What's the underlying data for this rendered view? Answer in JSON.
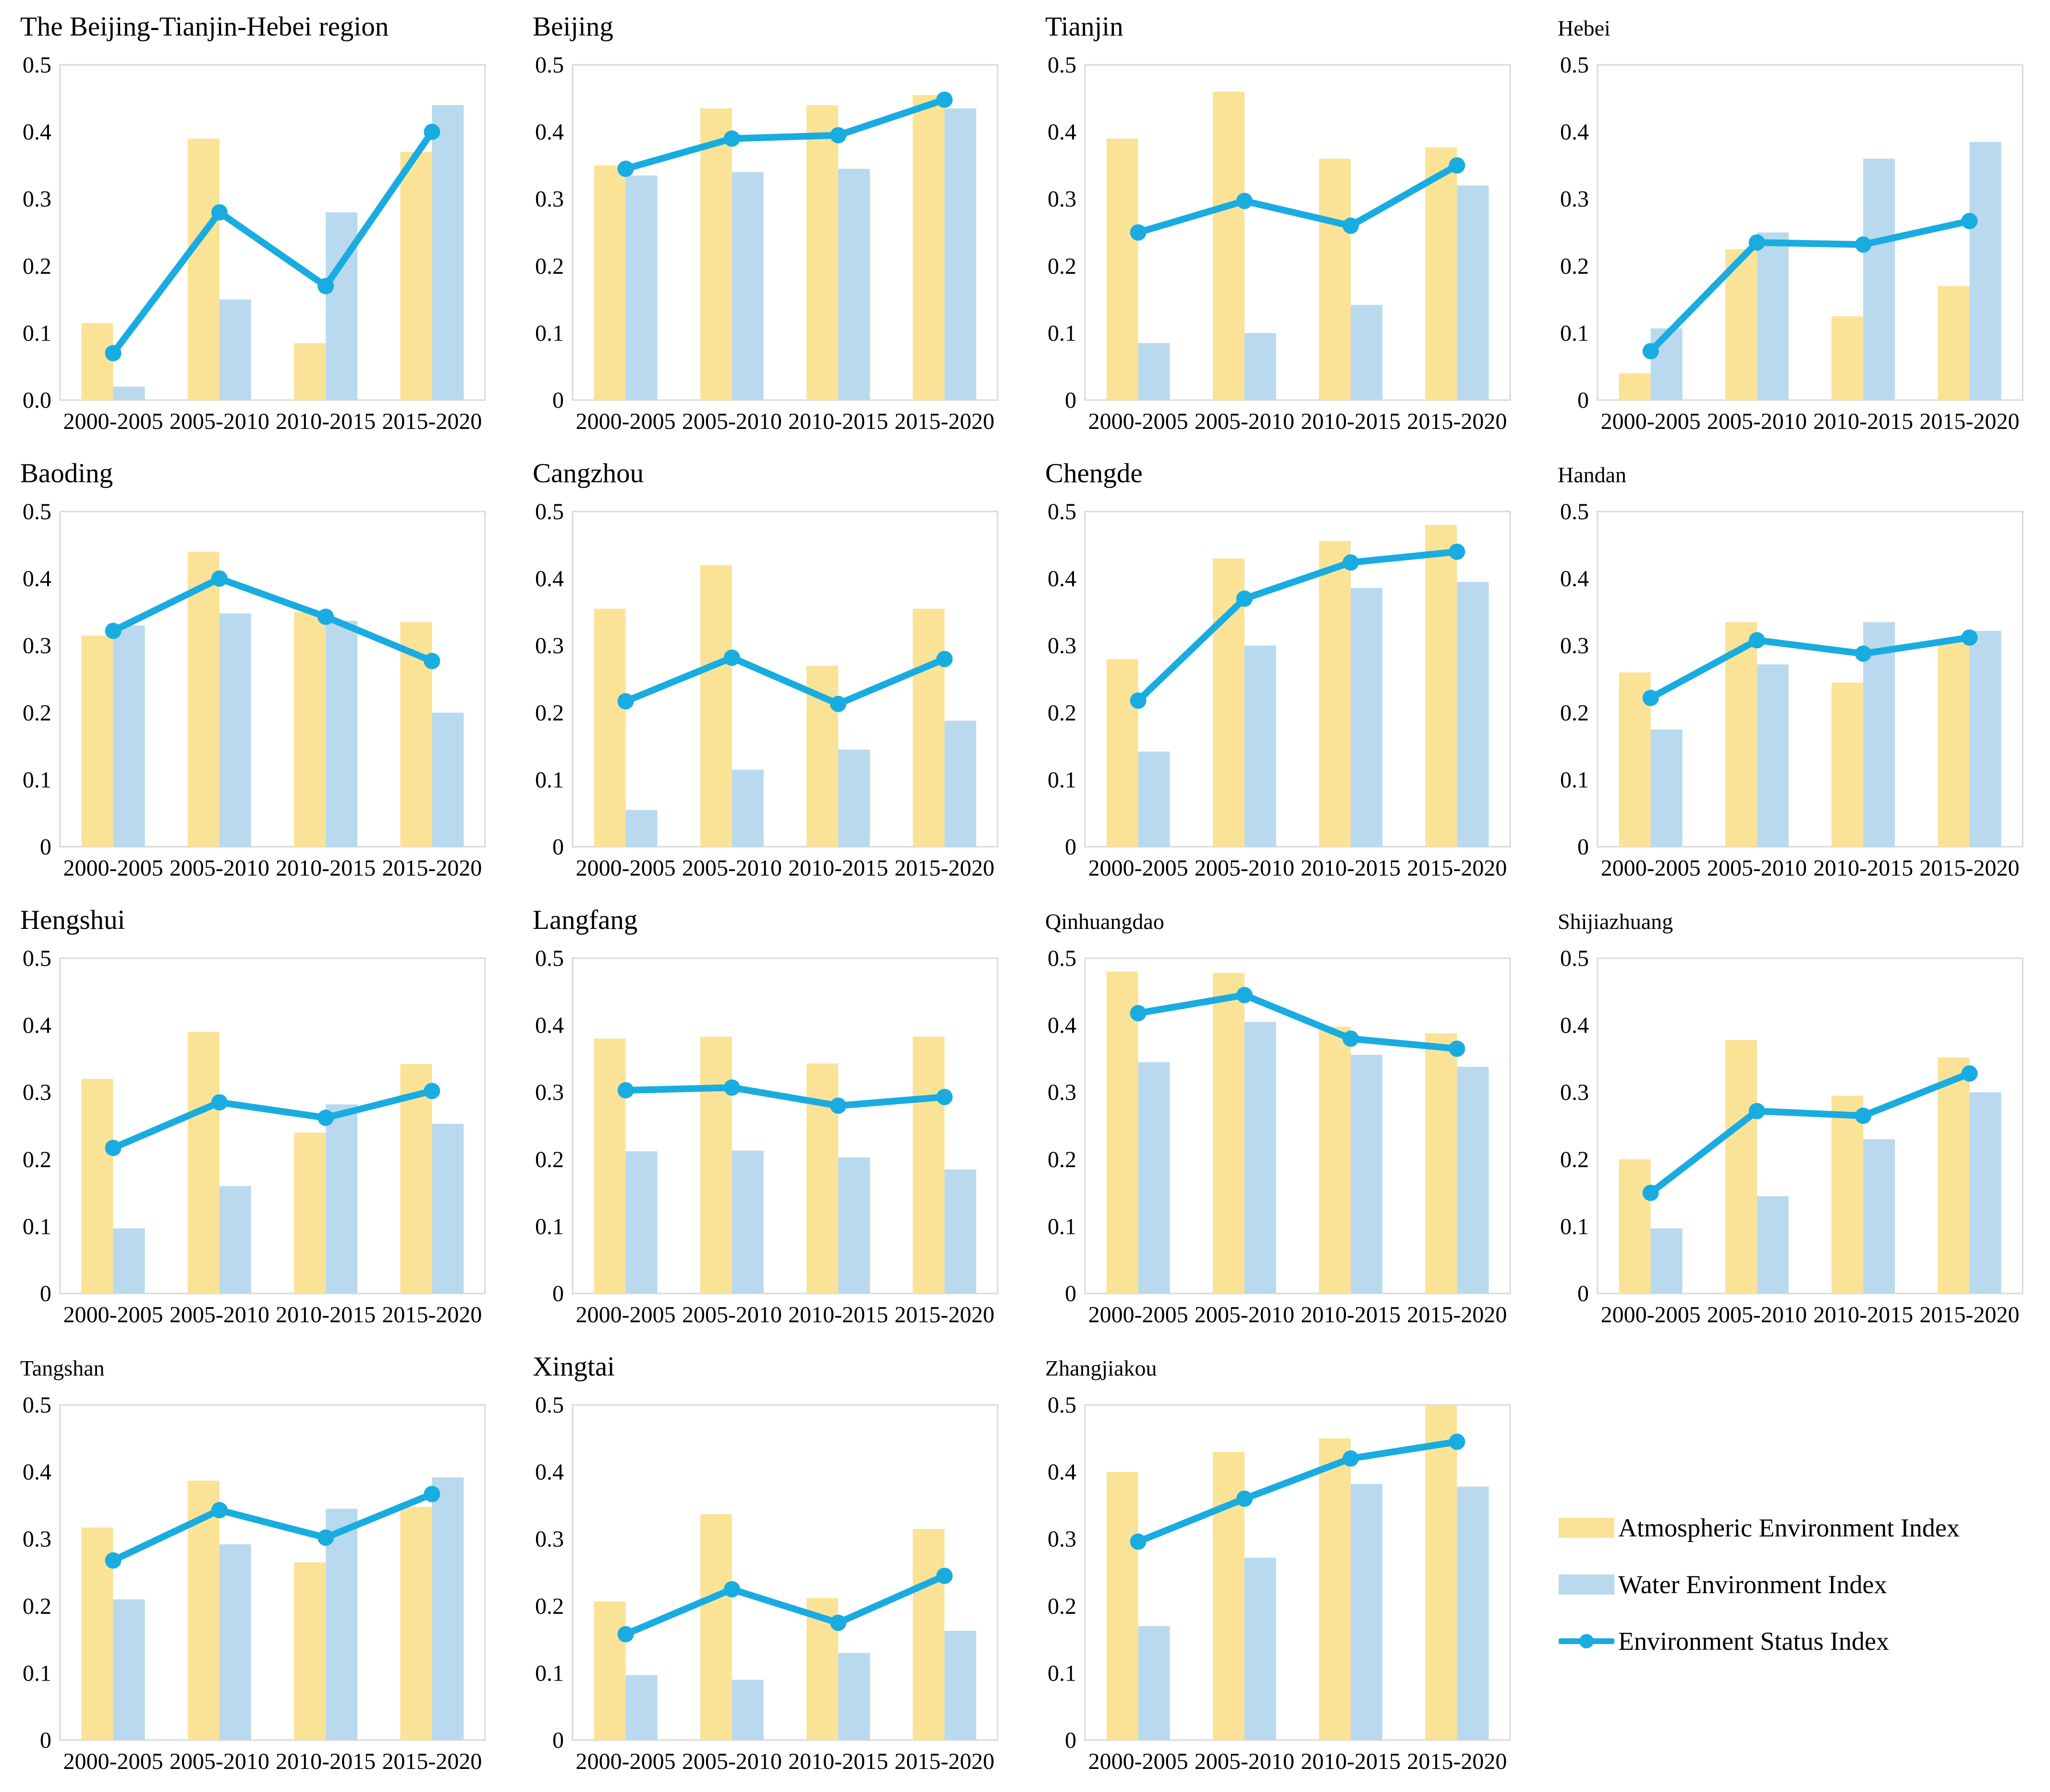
{
  "page": {
    "background": "#ffffff",
    "text_color": "#000000"
  },
  "colors": {
    "atmospheric_bar": "#fae396",
    "water_bar": "#b9d9ee",
    "status_line": "#19ace0",
    "plot_border": "#d9d9d9"
  },
  "legend": {
    "items": [
      {
        "label": "Atmospheric Environment Index",
        "type": "bar",
        "color": "#fae396"
      },
      {
        "label": "Water Environment Index",
        "type": "bar",
        "color": "#b9d9ee"
      },
      {
        "label": "Environment Status Index",
        "type": "line",
        "color": "#19ace0"
      }
    ]
  },
  "chart_data": [
    {
      "title": "The Beijing-Tianjin-Hebei region",
      "type": "bar",
      "categories": [
        "2000-2005",
        "2005-2010",
        "2010-2015",
        "2015-2020"
      ],
      "ylim": [
        0,
        0.5
      ],
      "y_tick_labels": [
        "0.0",
        "0.1",
        "0.2",
        "0.3",
        "0.4",
        "0.5"
      ],
      "series": [
        {
          "name": "Atmospheric Environment Index",
          "type": "bar",
          "values": [
            0.115,
            0.39,
            0.085,
            0.37
          ]
        },
        {
          "name": "Water Environment Index",
          "type": "bar",
          "values": [
            0.02,
            0.15,
            0.28,
            0.44
          ]
        },
        {
          "name": "Environment Status Index",
          "type": "line",
          "values": [
            0.07,
            0.28,
            0.17,
            0.4
          ]
        }
      ]
    },
    {
      "title": "Beijing",
      "type": "bar",
      "categories": [
        "2000-2005",
        "2005-2010",
        "2010-2015",
        "2015-2020"
      ],
      "ylim": [
        0,
        0.5
      ],
      "y_tick_labels": [
        "0",
        "0.1",
        "0.2",
        "0.3",
        "0.4",
        "0.5"
      ],
      "series": [
        {
          "name": "Atmospheric Environment Index",
          "type": "bar",
          "values": [
            0.35,
            0.435,
            0.44,
            0.455
          ]
        },
        {
          "name": "Water Environment Index",
          "type": "bar",
          "values": [
            0.335,
            0.34,
            0.345,
            0.435
          ]
        },
        {
          "name": "Environment Status Index",
          "type": "line",
          "values": [
            0.345,
            0.39,
            0.395,
            0.448
          ]
        }
      ]
    },
    {
      "title": "Tianjin",
      "type": "bar",
      "categories": [
        "2000-2005",
        "2005-2010",
        "2010-2015",
        "2015-2020"
      ],
      "ylim": [
        0,
        0.5
      ],
      "y_tick_labels": [
        "0",
        "0.1",
        "0.2",
        "0.3",
        "0.4",
        "0.5"
      ],
      "series": [
        {
          "name": "Atmospheric Environment Index",
          "type": "bar",
          "values": [
            0.39,
            0.46,
            0.36,
            0.377
          ]
        },
        {
          "name": "Water Environment Index",
          "type": "bar",
          "values": [
            0.085,
            0.1,
            0.142,
            0.32
          ]
        },
        {
          "name": "Environment Status Index",
          "type": "line",
          "values": [
            0.25,
            0.297,
            0.26,
            0.35
          ]
        }
      ]
    },
    {
      "title": "Hebei",
      "type": "bar",
      "categories": [
        "2000-2005",
        "2005-2010",
        "2010-2015",
        "2015-2020"
      ],
      "ylim": [
        0,
        0.5
      ],
      "y_tick_labels": [
        "0",
        "0.1",
        "0.2",
        "0.3",
        "0.4",
        "0.5"
      ],
      "series": [
        {
          "name": "Atmospheric Environment Index",
          "type": "bar",
          "values": [
            0.04,
            0.225,
            0.125,
            0.17
          ]
        },
        {
          "name": "Water Environment Index",
          "type": "bar",
          "values": [
            0.107,
            0.25,
            0.36,
            0.385
          ]
        },
        {
          "name": "Environment Status Index",
          "type": "line",
          "values": [
            0.073,
            0.235,
            0.232,
            0.267
          ]
        }
      ]
    },
    {
      "title": "Baoding",
      "type": "bar",
      "categories": [
        "2000-2005",
        "2005-2010",
        "2010-2015",
        "2015-2020"
      ],
      "ylim": [
        0,
        0.5
      ],
      "y_tick_labels": [
        "0",
        "0.1",
        "0.2",
        "0.3",
        "0.4",
        "0.5"
      ],
      "series": [
        {
          "name": "Atmospheric Environment Index",
          "type": "bar",
          "values": [
            0.315,
            0.44,
            0.35,
            0.335
          ]
        },
        {
          "name": "Water Environment Index",
          "type": "bar",
          "values": [
            0.33,
            0.348,
            0.337,
            0.2
          ]
        },
        {
          "name": "Environment Status Index",
          "type": "line",
          "values": [
            0.322,
            0.4,
            0.343,
            0.277
          ]
        }
      ]
    },
    {
      "title": "Cangzhou",
      "type": "bar",
      "categories": [
        "2000-2005",
        "2005-2010",
        "2010-2015",
        "2015-2020"
      ],
      "ylim": [
        0,
        0.5
      ],
      "y_tick_labels": [
        "0",
        "0.1",
        "0.2",
        "0.3",
        "0.4",
        "0.5"
      ],
      "series": [
        {
          "name": "Atmospheric Environment Index",
          "type": "bar",
          "values": [
            0.355,
            0.42,
            0.27,
            0.355
          ]
        },
        {
          "name": "Water Environment Index",
          "type": "bar",
          "values": [
            0.055,
            0.115,
            0.145,
            0.188
          ]
        },
        {
          "name": "Environment Status Index",
          "type": "line",
          "values": [
            0.217,
            0.282,
            0.213,
            0.28
          ]
        }
      ]
    },
    {
      "title": "Chengde",
      "type": "bar",
      "categories": [
        "2000-2005",
        "2005-2010",
        "2010-2015",
        "2015-2020"
      ],
      "ylim": [
        0,
        0.5
      ],
      "y_tick_labels": [
        "0",
        "0.1",
        "0.2",
        "0.3",
        "0.4",
        "0.5"
      ],
      "series": [
        {
          "name": "Atmospheric Environment Index",
          "type": "bar",
          "values": [
            0.28,
            0.43,
            0.456,
            0.48
          ]
        },
        {
          "name": "Water Environment Index",
          "type": "bar",
          "values": [
            0.142,
            0.3,
            0.386,
            0.395
          ]
        },
        {
          "name": "Environment Status Index",
          "type": "line",
          "values": [
            0.218,
            0.37,
            0.424,
            0.44
          ]
        }
      ]
    },
    {
      "title": "Handan",
      "type": "bar",
      "categories": [
        "2000-2005",
        "2005-2010",
        "2010-2015",
        "2015-2020"
      ],
      "ylim": [
        0,
        0.5
      ],
      "y_tick_labels": [
        "0",
        "0.1",
        "0.2",
        "0.3",
        "0.4",
        "0.5"
      ],
      "series": [
        {
          "name": "Atmospheric Environment Index",
          "type": "bar",
          "values": [
            0.26,
            0.335,
            0.245,
            0.305
          ]
        },
        {
          "name": "Water Environment Index",
          "type": "bar",
          "values": [
            0.175,
            0.272,
            0.335,
            0.322
          ]
        },
        {
          "name": "Environment Status Index",
          "type": "line",
          "values": [
            0.222,
            0.308,
            0.288,
            0.312
          ]
        }
      ]
    },
    {
      "title": "Hengshui",
      "type": "bar",
      "categories": [
        "2000-2005",
        "2005-2010",
        "2010-2015",
        "2015-2020"
      ],
      "ylim": [
        0,
        0.5
      ],
      "y_tick_labels": [
        "0",
        "0.1",
        "0.2",
        "0.3",
        "0.4",
        "0.5"
      ],
      "series": [
        {
          "name": "Atmospheric Environment Index",
          "type": "bar",
          "values": [
            0.32,
            0.39,
            0.24,
            0.342
          ]
        },
        {
          "name": "Water Environment Index",
          "type": "bar",
          "values": [
            0.097,
            0.16,
            0.282,
            0.253
          ]
        },
        {
          "name": "Environment Status Index",
          "type": "line",
          "values": [
            0.217,
            0.285,
            0.262,
            0.302
          ]
        }
      ]
    },
    {
      "title": "Langfang",
      "type": "bar",
      "categories": [
        "2000-2005",
        "2005-2010",
        "2010-2015",
        "2015-2020"
      ],
      "ylim": [
        0,
        0.5
      ],
      "y_tick_labels": [
        "0",
        "0.1",
        "0.2",
        "0.3",
        "0.4",
        "0.5"
      ],
      "series": [
        {
          "name": "Atmospheric Environment Index",
          "type": "bar",
          "values": [
            0.38,
            0.383,
            0.343,
            0.383
          ]
        },
        {
          "name": "Water Environment Index",
          "type": "bar",
          "values": [
            0.212,
            0.213,
            0.203,
            0.185
          ]
        },
        {
          "name": "Environment Status Index",
          "type": "line",
          "values": [
            0.303,
            0.307,
            0.28,
            0.293
          ]
        }
      ]
    },
    {
      "title": "Qinhuangdao",
      "type": "bar",
      "categories": [
        "2000-2005",
        "2005-2010",
        "2010-2015",
        "2015-2020"
      ],
      "ylim": [
        0,
        0.5
      ],
      "y_tick_labels": [
        "0",
        "0.1",
        "0.2",
        "0.3",
        "0.4",
        "0.5"
      ],
      "series": [
        {
          "name": "Atmospheric Environment Index",
          "type": "bar",
          "values": [
            0.48,
            0.478,
            0.398,
            0.388
          ]
        },
        {
          "name": "Water Environment Index",
          "type": "bar",
          "values": [
            0.345,
            0.405,
            0.356,
            0.338
          ]
        },
        {
          "name": "Environment Status Index",
          "type": "line",
          "values": [
            0.418,
            0.445,
            0.38,
            0.365
          ]
        }
      ]
    },
    {
      "title": "Shijiazhuang",
      "type": "bar",
      "categories": [
        "2000-2005",
        "2005-2010",
        "2010-2015",
        "2015-2020"
      ],
      "ylim": [
        0,
        0.5
      ],
      "y_tick_labels": [
        "0",
        "0.1",
        "0.2",
        "0.3",
        "0.4",
        "0.5"
      ],
      "series": [
        {
          "name": "Atmospheric Environment Index",
          "type": "bar",
          "values": [
            0.2,
            0.378,
            0.295,
            0.352
          ]
        },
        {
          "name": "Water Environment Index",
          "type": "bar",
          "values": [
            0.097,
            0.145,
            0.23,
            0.3
          ]
        },
        {
          "name": "Environment Status Index",
          "type": "line",
          "values": [
            0.15,
            0.272,
            0.265,
            0.328
          ]
        }
      ]
    },
    {
      "title": "Tangshan",
      "type": "bar",
      "categories": [
        "2000-2005",
        "2005-2010",
        "2010-2015",
        "2015-2020"
      ],
      "ylim": [
        0,
        0.5
      ],
      "y_tick_labels": [
        "0",
        "0.1",
        "0.2",
        "0.3",
        "0.4",
        "0.5"
      ],
      "series": [
        {
          "name": "Atmospheric Environment Index",
          "type": "bar",
          "values": [
            0.317,
            0.387,
            0.265,
            0.348
          ]
        },
        {
          "name": "Water Environment Index",
          "type": "bar",
          "values": [
            0.21,
            0.292,
            0.345,
            0.392
          ]
        },
        {
          "name": "Environment Status Index",
          "type": "line",
          "values": [
            0.268,
            0.343,
            0.302,
            0.367
          ]
        }
      ]
    },
    {
      "title": "Xingtai",
      "type": "bar",
      "categories": [
        "2000-2005",
        "2005-2010",
        "2010-2015",
        "2015-2020"
      ],
      "ylim": [
        0,
        0.5
      ],
      "y_tick_labels": [
        "0",
        "0.1",
        "0.2",
        "0.3",
        "0.4",
        "0.5"
      ],
      "series": [
        {
          "name": "Atmospheric Environment Index",
          "type": "bar",
          "values": [
            0.207,
            0.337,
            0.212,
            0.315
          ]
        },
        {
          "name": "Water Environment Index",
          "type": "bar",
          "values": [
            0.097,
            0.09,
            0.13,
            0.163
          ]
        },
        {
          "name": "Environment Status Index",
          "type": "line",
          "values": [
            0.158,
            0.225,
            0.175,
            0.245
          ]
        }
      ]
    },
    {
      "title": "Zhangjiakou",
      "type": "bar",
      "categories": [
        "2000-2005",
        "2005-2010",
        "2010-2015",
        "2015-2020"
      ],
      "ylim": [
        0,
        0.5
      ],
      "y_tick_labels": [
        "0",
        "0.1",
        "0.2",
        "0.3",
        "0.4",
        "0.5"
      ],
      "series": [
        {
          "name": "Atmospheric Environment Index",
          "type": "bar",
          "values": [
            0.4,
            0.43,
            0.45,
            0.5
          ]
        },
        {
          "name": "Water Environment Index",
          "type": "bar",
          "values": [
            0.17,
            0.272,
            0.382,
            0.378
          ]
        },
        {
          "name": "Environment Status Index",
          "type": "line",
          "values": [
            0.296,
            0.36,
            0.42,
            0.445
          ]
        }
      ]
    }
  ]
}
